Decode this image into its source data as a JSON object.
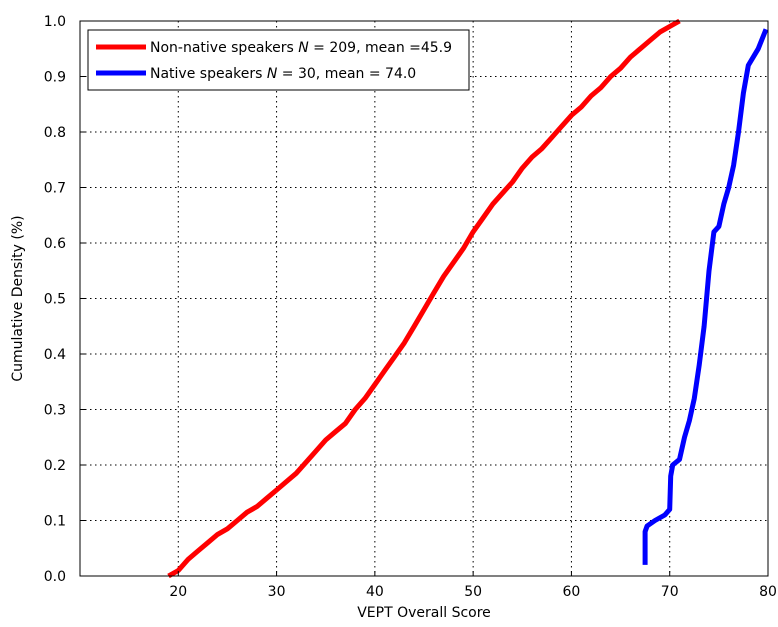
{
  "chart_data": {
    "type": "line",
    "title": "",
    "xlabel": "VEPT Overall Score",
    "ylabel": "Cumulative Density (%)",
    "xlim": [
      10,
      80
    ],
    "ylim": [
      0,
      1
    ],
    "xticks": [
      20,
      30,
      40,
      50,
      60,
      70,
      80
    ],
    "yticks": [
      0.0,
      0.1,
      0.2,
      0.3,
      0.4,
      0.5,
      0.6,
      0.7,
      0.8,
      0.9,
      1.0
    ],
    "ytick_labels": [
      "0.0",
      "0.1",
      "0.2",
      "0.3",
      "0.4",
      "0.5",
      "0.6",
      "0.7",
      "0.8",
      "0.9",
      "1.0"
    ],
    "grid": true,
    "legend_position": "top-left",
    "series": [
      {
        "name": "Non-native speakers",
        "legend": {
          "prefix": "Non-native speakers ",
          "italic": "N",
          "suffix": " = 209, mean =45.9"
        },
        "color": "#ff0000",
        "x": [
          19,
          20,
          21,
          22,
          23,
          24,
          25,
          26,
          27,
          28,
          29,
          30,
          31,
          32,
          33,
          34,
          35,
          36,
          37,
          38,
          39,
          40,
          41,
          42,
          43,
          44,
          45,
          46,
          47,
          48,
          49,
          50,
          51,
          52,
          53,
          54,
          55,
          56,
          57,
          58,
          59,
          60,
          61,
          62,
          63,
          64,
          65,
          66,
          67,
          68,
          69,
          70,
          71
        ],
        "y": [
          0.0,
          0.01,
          0.03,
          0.045,
          0.06,
          0.075,
          0.085,
          0.1,
          0.115,
          0.125,
          0.14,
          0.155,
          0.17,
          0.185,
          0.205,
          0.225,
          0.245,
          0.26,
          0.275,
          0.3,
          0.32,
          0.345,
          0.37,
          0.395,
          0.42,
          0.45,
          0.48,
          0.51,
          0.54,
          0.565,
          0.59,
          0.62,
          0.645,
          0.67,
          0.69,
          0.71,
          0.735,
          0.755,
          0.77,
          0.79,
          0.81,
          0.83,
          0.845,
          0.865,
          0.88,
          0.9,
          0.915,
          0.935,
          0.95,
          0.965,
          0.98,
          0.99,
          1.0
        ]
      },
      {
        "name": "Native speakers",
        "legend": {
          "prefix": " Native speakers ",
          "italic": "N",
          "suffix": " = 30, mean = 74.0"
        },
        "color": "#0000ff",
        "x": [
          67.5,
          67.5,
          67.7,
          68.5,
          69.5,
          70.0,
          70.1,
          70.3,
          71.0,
          71.5,
          72.0,
          72.5,
          73.0,
          73.5,
          74.0,
          74.5,
          75.0,
          75.5,
          76.0,
          76.5,
          77.0,
          77.5,
          78.0,
          79.0,
          79.8
        ],
        "y": [
          0.02,
          0.08,
          0.09,
          0.1,
          0.11,
          0.12,
          0.18,
          0.2,
          0.21,
          0.25,
          0.28,
          0.32,
          0.38,
          0.45,
          0.55,
          0.62,
          0.63,
          0.67,
          0.7,
          0.74,
          0.8,
          0.87,
          0.92,
          0.95,
          0.985
        ]
      }
    ]
  }
}
